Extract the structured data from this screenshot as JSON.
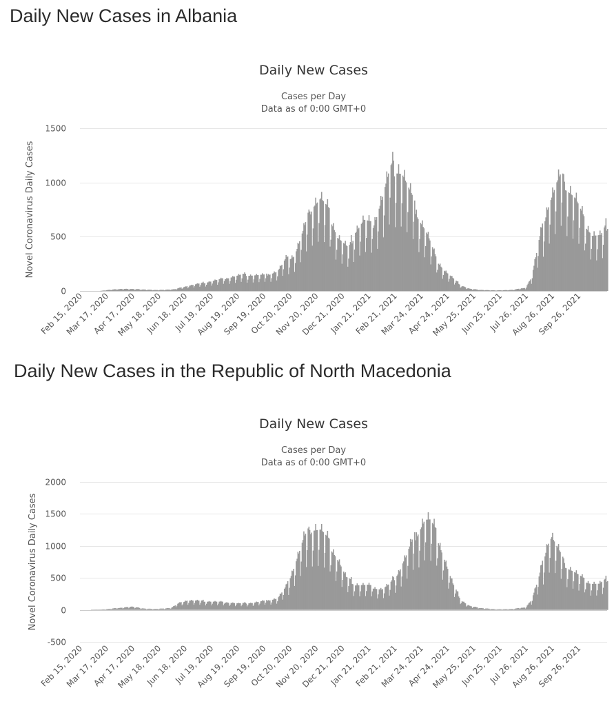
{
  "panels": [
    {
      "heading": "Daily New Cases in Albania",
      "chart_data": {
        "type": "bar",
        "title": "Daily New Cases",
        "subtitle_lines": [
          "Cases per Day",
          "Data as of 0:00 GMT+0"
        ],
        "ylabel": "Novel Coronavirus Daily Cases",
        "ylim": [
          0,
          1500
        ],
        "yticks": [
          0,
          500,
          1000,
          1500
        ],
        "x_start": "2020-02-15",
        "x_end": "2021-10-30",
        "xtick_labels": [
          "Feb 15, 2020",
          "Mar 17, 2020",
          "Apr 17, 2020",
          "May 18, 2020",
          "Jun 18, 2020",
          "Jul 19, 2020",
          "Aug 19, 2020",
          "Sep 19, 2020",
          "Oct 20, 2020",
          "Nov 20, 2020",
          "Dec 21, 2020",
          "Jan 21, 2021",
          "Feb 21, 2021",
          "Mar 24, 2021",
          "Apr 24, 2021",
          "May 25, 2021",
          "Jun 25, 2021",
          "Jul 26, 2021",
          "Aug 26, 2021",
          "Sep 26, 2021"
        ],
        "xtick_dates": [
          "2020-02-15",
          "2020-03-17",
          "2020-04-17",
          "2020-05-18",
          "2020-06-18",
          "2020-07-19",
          "2020-08-19",
          "2020-09-19",
          "2020-10-20",
          "2020-11-20",
          "2020-12-21",
          "2021-01-21",
          "2021-02-21",
          "2021-03-24",
          "2021-04-24",
          "2021-05-25",
          "2021-06-25",
          "2021-07-26",
          "2021-08-26",
          "2021-09-26"
        ],
        "grid": true,
        "bar_color": "#999999",
        "series": [
          {
            "values_by_date": [
              [
                "2020-03-09",
                0
              ],
              [
                "2020-03-20",
                10
              ],
              [
                "2020-04-05",
                20
              ],
              [
                "2020-04-25",
                15
              ],
              [
                "2020-05-15",
                8
              ],
              [
                "2020-06-05",
                15
              ],
              [
                "2020-06-20",
                45
              ],
              [
                "2020-07-10",
                75
              ],
              [
                "2020-07-25",
                100
              ],
              [
                "2020-08-10",
                125
              ],
              [
                "2020-08-25",
                150
              ],
              [
                "2020-09-05",
                145
              ],
              [
                "2020-09-20",
                145
              ],
              [
                "2020-10-05",
                180
              ],
              [
                "2020-10-15",
                290
              ],
              [
                "2020-10-25",
                330
              ],
              [
                "2020-11-05",
                560
              ],
              [
                "2020-11-15",
                800
              ],
              [
                "2020-11-25",
                850
              ],
              [
                "2020-12-05",
                720
              ],
              [
                "2020-12-15",
                500
              ],
              [
                "2020-12-28",
                380
              ],
              [
                "2021-01-05",
                560
              ],
              [
                "2021-01-15",
                650
              ],
              [
                "2021-01-25",
                600
              ],
              [
                "2021-02-05",
                850
              ],
              [
                "2021-02-15",
                1100
              ],
              [
                "2021-02-22",
                1150
              ],
              [
                "2021-03-01",
                1100
              ],
              [
                "2021-03-08",
                950
              ],
              [
                "2021-03-20",
                700
              ],
              [
                "2021-03-31",
                520
              ],
              [
                "2021-04-10",
                300
              ],
              [
                "2021-04-20",
                190
              ],
              [
                "2021-05-01",
                110
              ],
              [
                "2021-05-10",
                50
              ],
              [
                "2021-05-20",
                20
              ],
              [
                "2021-06-01",
                10
              ],
              [
                "2021-06-20",
                5
              ],
              [
                "2021-07-10",
                10
              ],
              [
                "2021-07-25",
                30
              ],
              [
                "2021-08-01",
                120
              ],
              [
                "2021-08-10",
                450
              ],
              [
                "2021-08-20",
                780
              ],
              [
                "2021-08-31",
                980
              ],
              [
                "2021-09-05",
                1040
              ],
              [
                "2021-09-12",
                970
              ],
              [
                "2021-09-22",
                850
              ],
              [
                "2021-10-02",
                650
              ],
              [
                "2021-10-12",
                520
              ],
              [
                "2021-10-22",
                500
              ],
              [
                "2021-10-30",
                610
              ]
            ]
          }
        ]
      }
    },
    {
      "heading": "Daily New Cases in the Republic of North Macedonia",
      "chart_data": {
        "type": "bar",
        "title": "Daily New Cases",
        "subtitle_lines": [
          "Cases per Day",
          "Data as of 0:00 GMT+0"
        ],
        "ylabel": "Novel Coronavirus Daily Cases",
        "ylim": [
          -500,
          2000
        ],
        "yticks": [
          -500,
          0,
          500,
          1000,
          1500,
          2000
        ],
        "x_start": "2020-02-15",
        "x_end": "2021-10-30",
        "xtick_labels": [
          "Feb 15, 2020",
          "Mar 17, 2020",
          "Apr 17, 2020",
          "May 18, 2020",
          "Jun 18, 2020",
          "Jul 19, 2020",
          "Aug 19, 2020",
          "Sep 19, 2020",
          "Oct 20, 2020",
          "Nov 20, 2020",
          "Dec 21, 2020",
          "Jan 21, 2021",
          "Feb 21, 2021",
          "Mar 24, 2021",
          "Apr 24, 2021",
          "May 25, 2021",
          "Jun 25, 2021",
          "Jul 26, 2021",
          "Aug 26, 2021",
          "Sep 26, 2021"
        ],
        "xtick_dates": [
          "2020-02-15",
          "2020-03-17",
          "2020-04-17",
          "2020-05-18",
          "2020-06-18",
          "2020-07-19",
          "2020-08-19",
          "2020-09-19",
          "2020-10-20",
          "2020-11-20",
          "2020-12-21",
          "2021-01-21",
          "2021-02-21",
          "2021-03-24",
          "2021-04-24",
          "2021-05-25",
          "2021-06-25",
          "2021-07-26",
          "2021-08-26",
          "2021-09-26"
        ],
        "grid": true,
        "bar_color": "#999999",
        "series": [
          {
            "values_by_date": [
              [
                "2020-02-27",
                0
              ],
              [
                "2020-03-15",
                10
              ],
              [
                "2020-03-31",
                30
              ],
              [
                "2020-04-15",
                50
              ],
              [
                "2020-05-01",
                20
              ],
              [
                "2020-05-15",
                15
              ],
              [
                "2020-06-01",
                30
              ],
              [
                "2020-06-10",
                100
              ],
              [
                "2020-06-20",
                150
              ],
              [
                "2020-07-05",
                140
              ],
              [
                "2020-07-20",
                130
              ],
              [
                "2020-08-05",
                120
              ],
              [
                "2020-08-20",
                100
              ],
              [
                "2020-09-05",
                110
              ],
              [
                "2020-09-20",
                140
              ],
              [
                "2020-10-05",
                180
              ],
              [
                "2020-10-15",
                350
              ],
              [
                "2020-10-25",
                700
              ],
              [
                "2020-11-05",
                1100
              ],
              [
                "2020-11-15",
                1300
              ],
              [
                "2020-11-25",
                1250
              ],
              [
                "2020-12-05",
                1050
              ],
              [
                "2020-12-15",
                800
              ],
              [
                "2020-12-25",
                500
              ],
              [
                "2021-01-05",
                400
              ],
              [
                "2021-01-20",
                380
              ],
              [
                "2021-02-05",
                320
              ],
              [
                "2021-02-15",
                400
              ],
              [
                "2021-02-25",
                600
              ],
              [
                "2021-03-08",
                900
              ],
              [
                "2021-03-18",
                1200
              ],
              [
                "2021-03-28",
                1420
              ],
              [
                "2021-04-03",
                1380
              ],
              [
                "2021-04-12",
                1150
              ],
              [
                "2021-04-20",
                800
              ],
              [
                "2021-04-30",
                400
              ],
              [
                "2021-05-10",
                150
              ],
              [
                "2021-05-20",
                60
              ],
              [
                "2021-06-01",
                30
              ],
              [
                "2021-06-20",
                10
              ],
              [
                "2021-07-10",
                15
              ],
              [
                "2021-07-25",
                40
              ],
              [
                "2021-08-01",
                150
              ],
              [
                "2021-08-10",
                500
              ],
              [
                "2021-08-20",
                1050
              ],
              [
                "2021-08-25",
                1150
              ],
              [
                "2021-09-01",
                950
              ],
              [
                "2021-09-10",
                700
              ],
              [
                "2021-09-20",
                600
              ],
              [
                "2021-10-01",
                480
              ],
              [
                "2021-10-10",
                420
              ],
              [
                "2021-10-20",
                400
              ],
              [
                "2021-10-30",
                480
              ]
            ]
          }
        ]
      }
    }
  ]
}
